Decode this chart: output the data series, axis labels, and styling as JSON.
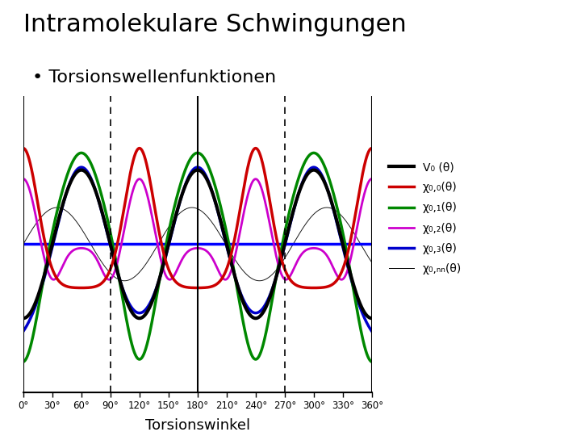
{
  "title": "Intramolekulare Schwingungen",
  "subtitle": "Torsionswellenfunktionen",
  "xlabel": "Torsionswinkel",
  "xticks": [
    0,
    30,
    60,
    90,
    120,
    150,
    180,
    210,
    240,
    270,
    300,
    330,
    360
  ],
  "xtick_labels": [
    "0°",
    "30°",
    "60°",
    "90°",
    "120°",
    "150°",
    "180°",
    "210°",
    "240°",
    "270°",
    "300°",
    "330°",
    "360°"
  ],
  "dashed_lines": [
    90,
    270
  ],
  "solid_vlines": [
    0,
    180,
    360
  ],
  "V0_color": "#000000",
  "chi00_color": "#cc0000",
  "chi01_color": "#008800",
  "chi02_color": "#cc00cc",
  "chi03_color": "#0000cc",
  "chi099_color": "#000000",
  "blue_line_color": "#0000ff",
  "legend_labels": [
    "V₀ (θ)",
    "χ₀,₀(θ)",
    "χ₀,₁(θ)",
    "χ₀,₂(θ)",
    "χ₀,₃(θ)",
    "χ₀,ₙₙ(θ)"
  ],
  "background_color": "#ffffff",
  "ylim": [
    -1.7,
    1.7
  ],
  "V0_scale": 0.85,
  "chi00_scale": 1.1,
  "chi01_scale": 1.35,
  "chi02_scale": 0.75,
  "chi03_scale": 1.0,
  "chi099_scale": 0.42,
  "sigma0": 15,
  "sigma1": 22,
  "sigma2": 12,
  "sigma3": 28,
  "chi099_freq": 148
}
